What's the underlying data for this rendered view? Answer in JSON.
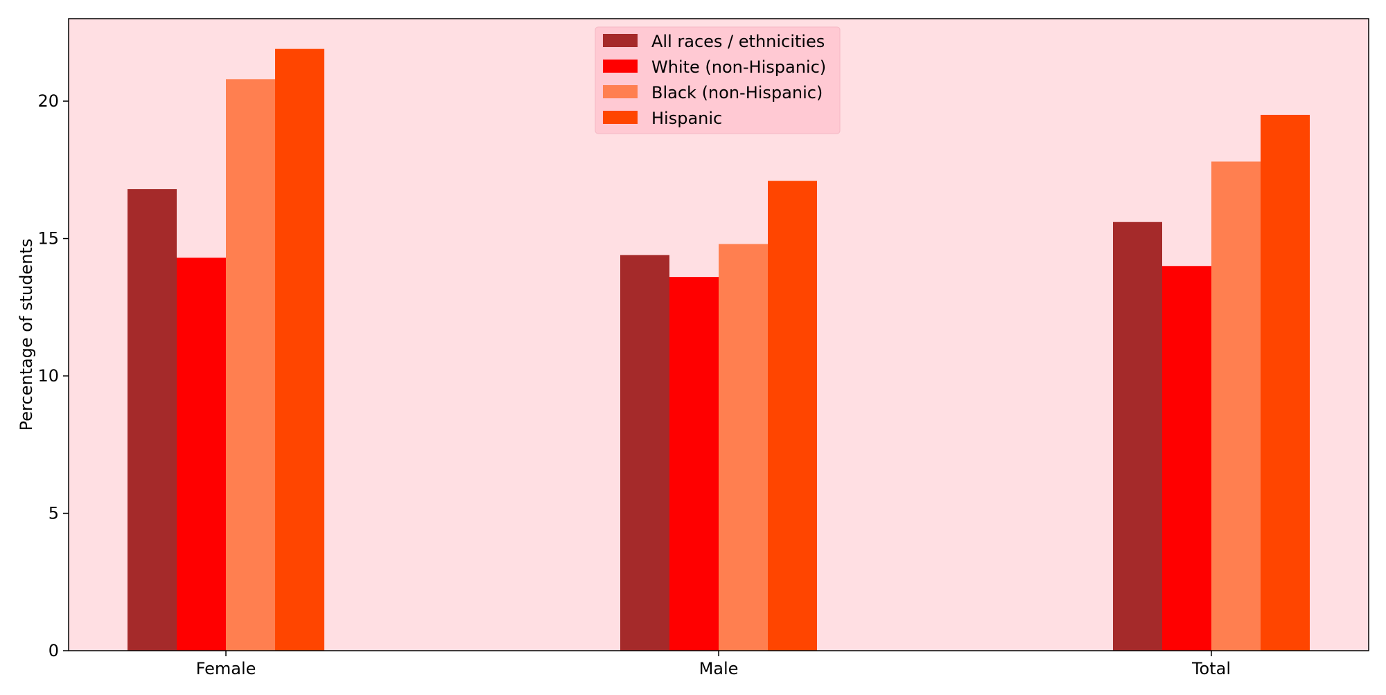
{
  "colors": {
    "figure_background": "#ffffff",
    "plot_background": "#ffdfe3",
    "legend_background": "#ffc9d3",
    "axis_color": "#000000"
  },
  "chart_data": {
    "type": "bar",
    "title": "",
    "xlabel": "",
    "ylabel": "Percentage of students",
    "categories": [
      "Female",
      "Male",
      "Total"
    ],
    "ylim": [
      0,
      23
    ],
    "yticks": [
      0,
      5,
      10,
      15,
      20
    ],
    "grid": false,
    "legend_position": "top-center",
    "series": [
      {
        "name": "All races / ethnicities",
        "color": "#a52a2a",
        "values": [
          16.8,
          14.4,
          15.6
        ]
      },
      {
        "name": "White (non-Hispanic)",
        "color": "#ff0000",
        "values": [
          14.3,
          13.6,
          14.0
        ]
      },
      {
        "name": "Black (non-Hispanic)",
        "color": "#ff7f50",
        "values": [
          20.8,
          14.8,
          17.8
        ]
      },
      {
        "name": "Hispanic",
        "color": "#ff4500",
        "values": [
          21.9,
          17.1,
          19.5
        ]
      }
    ]
  }
}
